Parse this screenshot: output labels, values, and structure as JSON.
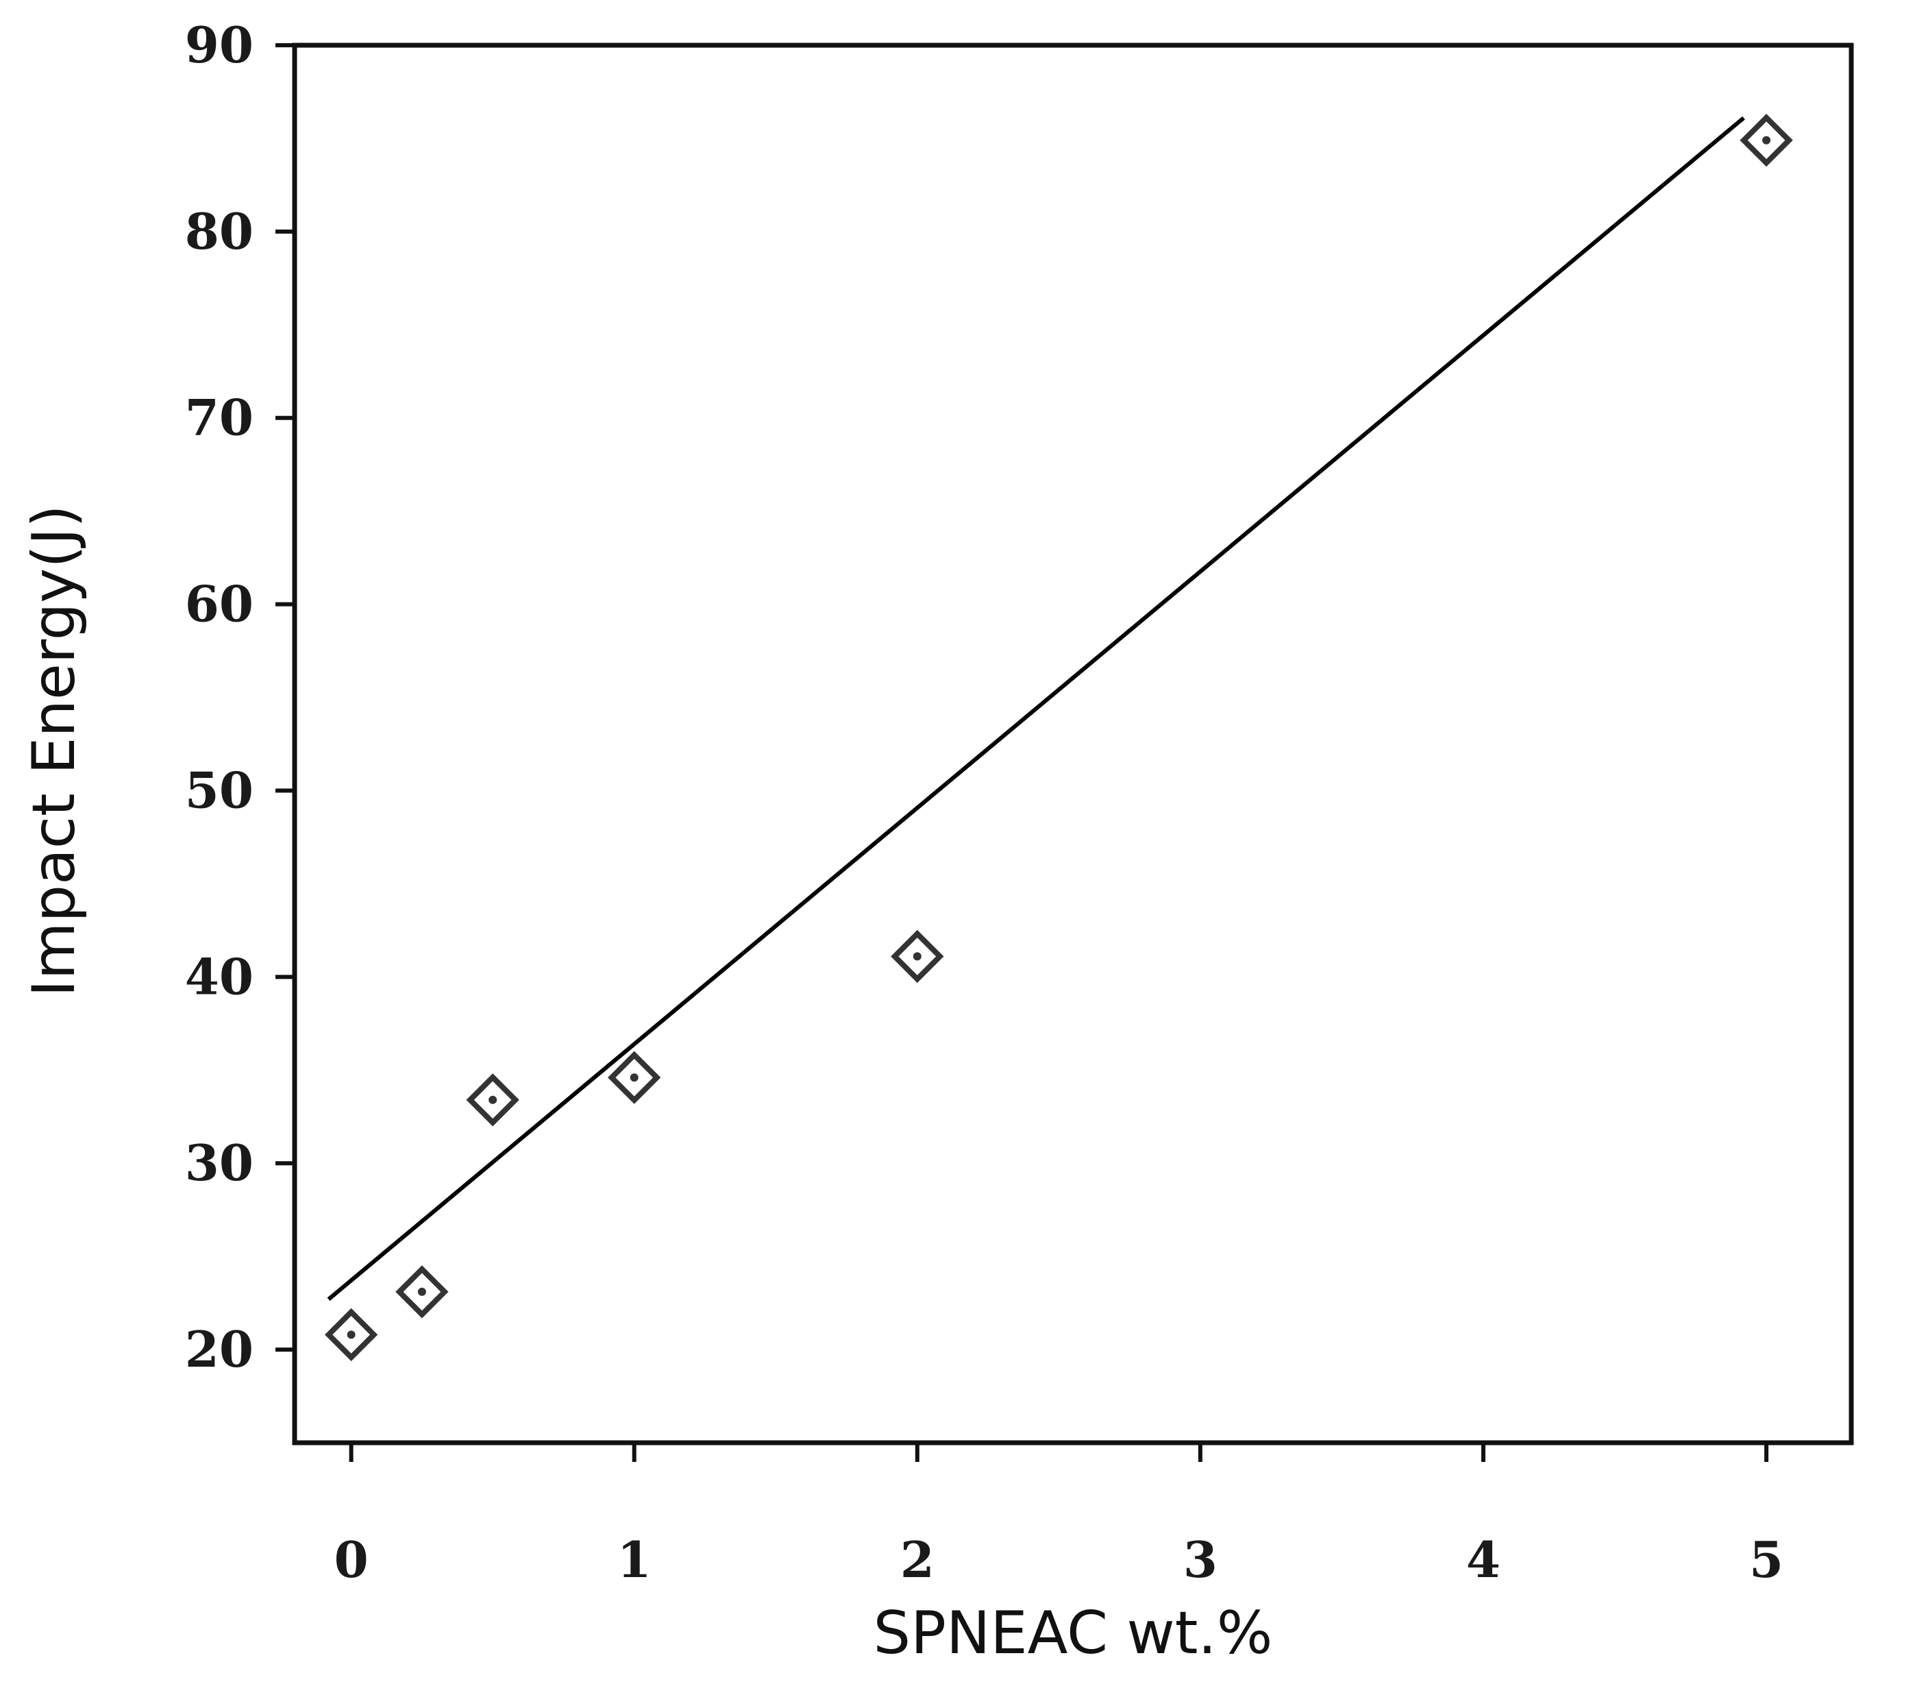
{
  "chart_data": {
    "type": "scatter",
    "title": "",
    "xlabel": "SPNEAC wt.%",
    "ylabel": "Impact Energy(J)",
    "xlim": [
      -0.2,
      5.3
    ],
    "ylim": [
      15,
      90
    ],
    "xticks": [
      0,
      1,
      2,
      3,
      4,
      5
    ],
    "yticks": [
      20,
      30,
      40,
      50,
      60,
      70,
      80,
      90
    ],
    "grid": false,
    "legend": "none",
    "series": [
      {
        "marker": "diamond-dot",
        "x": [
          0,
          0.25,
          0.5,
          1,
          2,
          5
        ],
        "y": [
          20.8,
          23.1,
          33.4,
          34.6,
          41.1,
          84.9
        ]
      }
    ],
    "trendline": {
      "type": "linear",
      "x": [
        -0.08,
        4.92
      ],
      "y": [
        22.7,
        86.1
      ]
    },
    "colors": {
      "axis": "#111111",
      "marker": "#333333",
      "line": "#000000"
    }
  }
}
